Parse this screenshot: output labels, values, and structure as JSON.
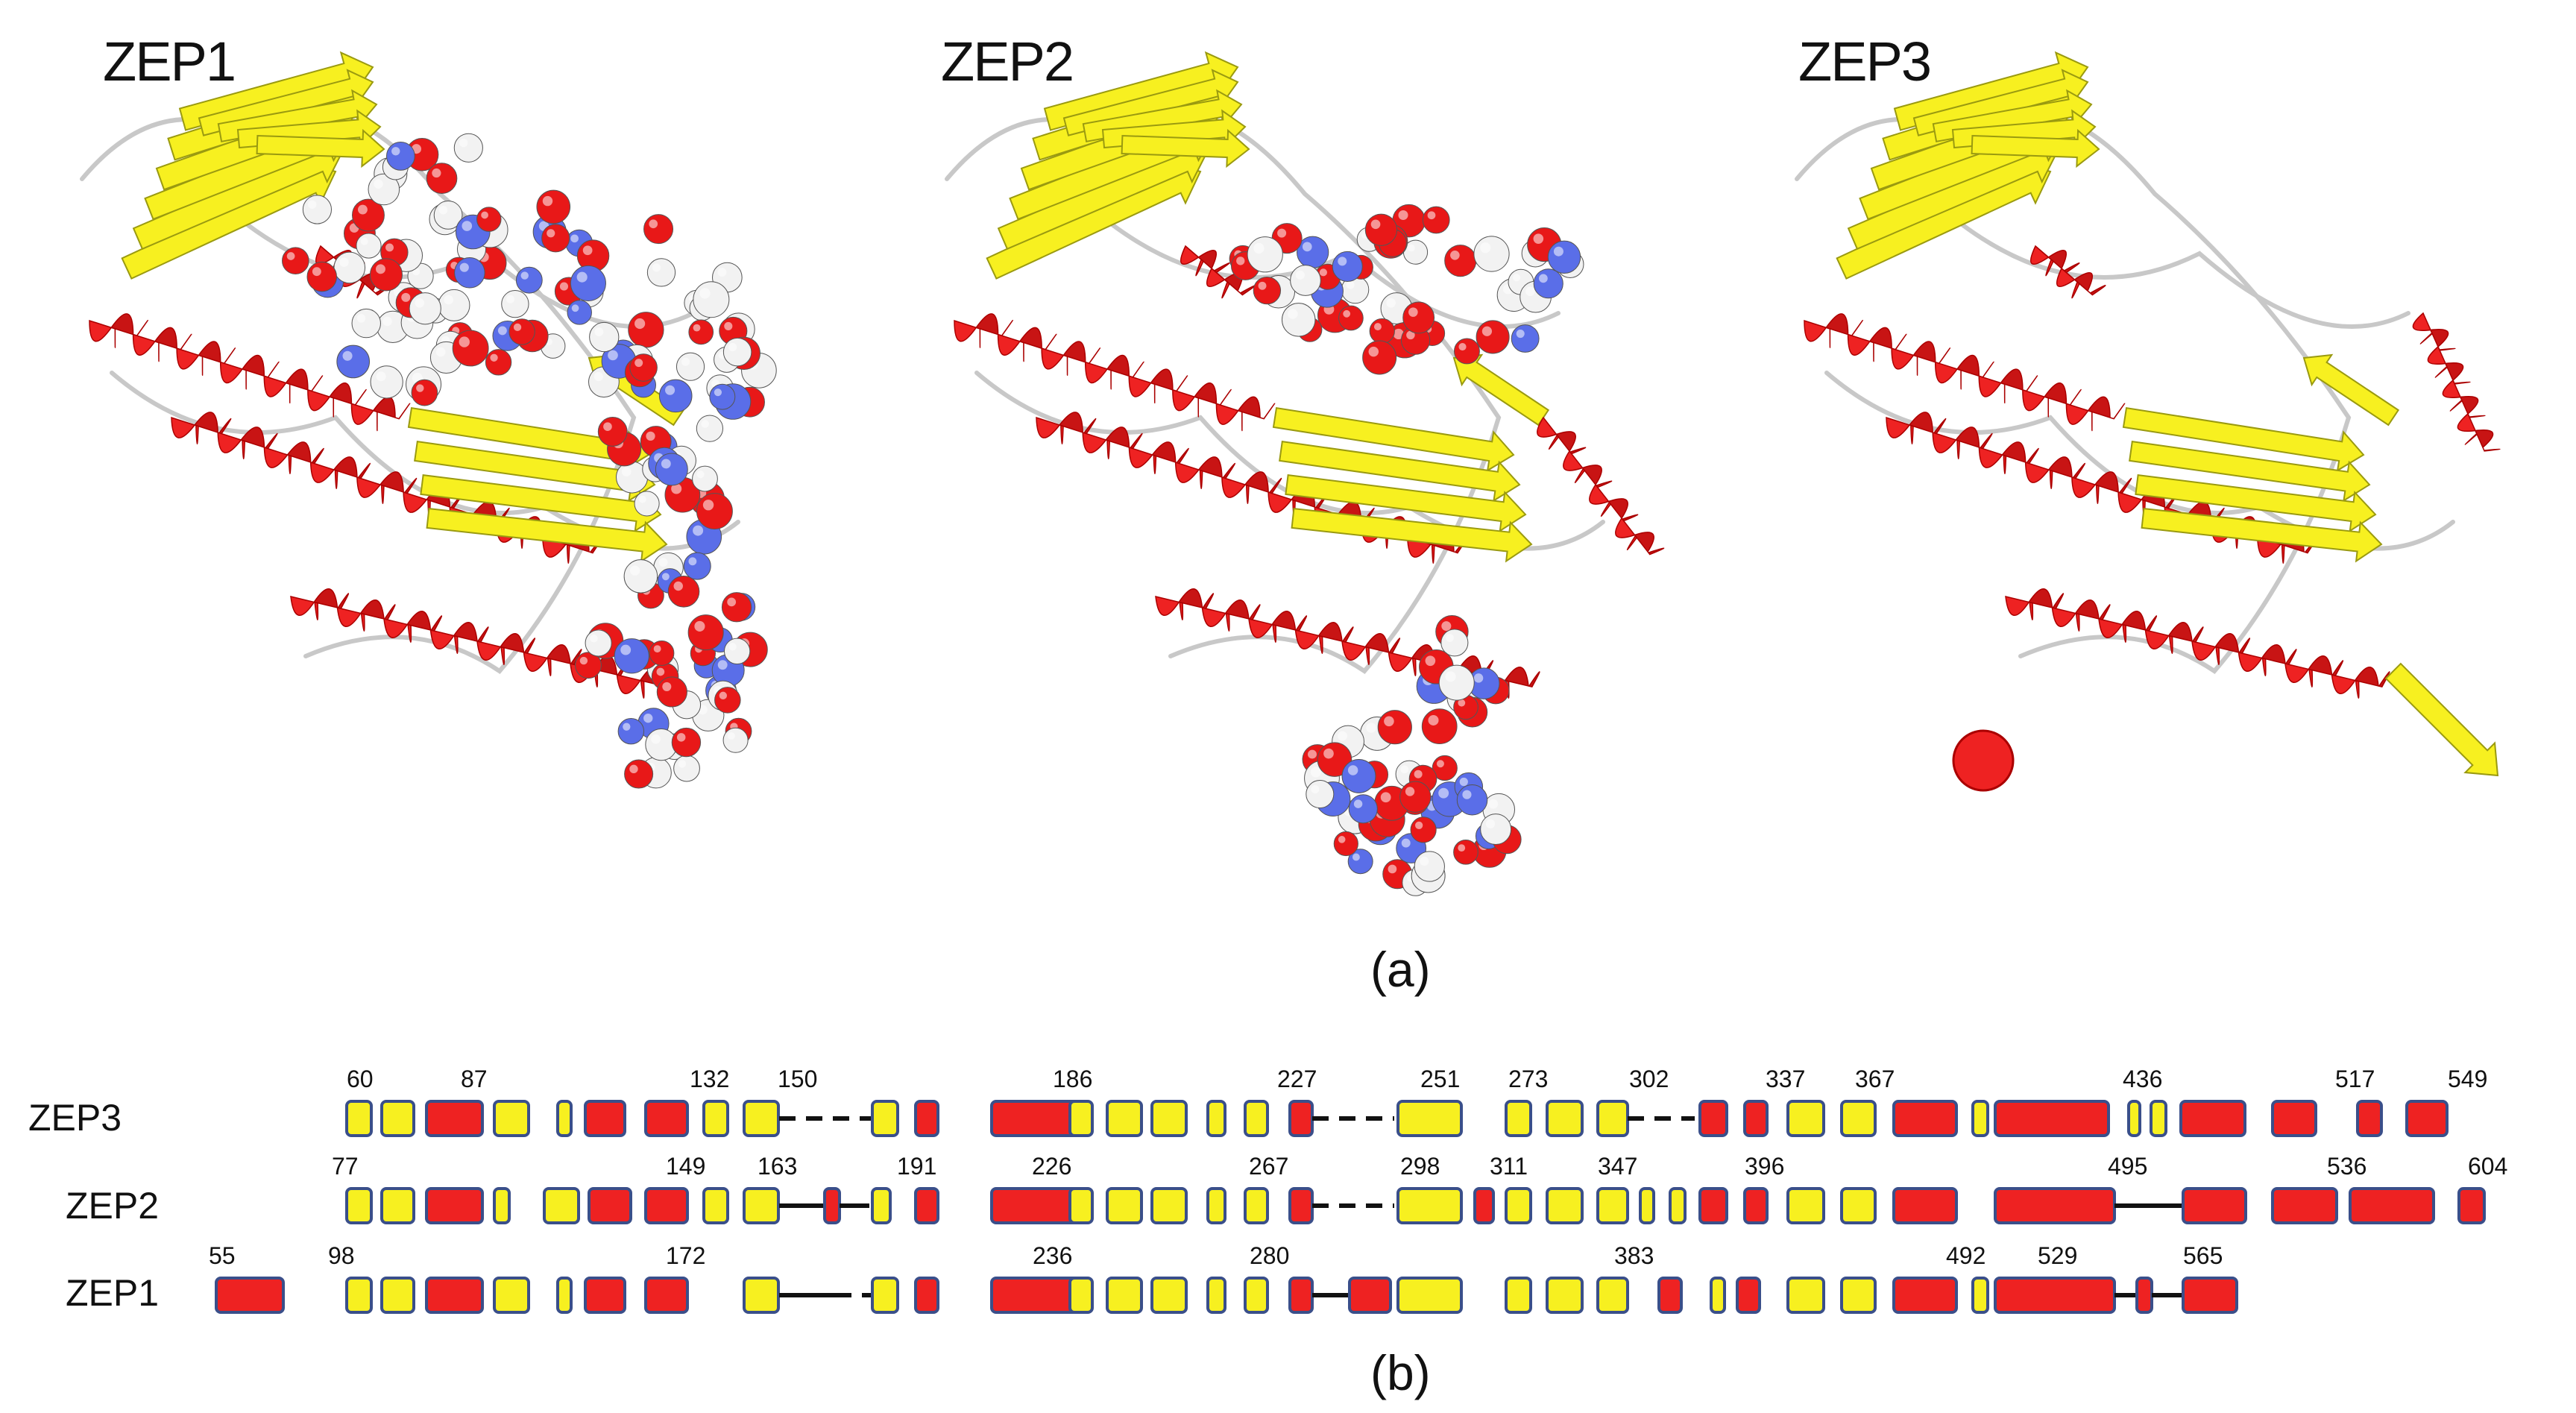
{
  "panel_a": {
    "label": "(a)",
    "structures": [
      {
        "name": "ZEP1",
        "has_ligands": true
      },
      {
        "name": "ZEP2",
        "has_ligands": true
      },
      {
        "name": "ZEP3",
        "has_ligands": false
      }
    ]
  },
  "panel_b": {
    "label": "(b)",
    "rows": [
      {
        "name": "ZEP3",
        "ticks": [
          "60",
          "87",
          "132",
          "150",
          "186",
          "227",
          "251",
          "273",
          "302",
          "337",
          "367",
          "436",
          "517",
          "549"
        ]
      },
      {
        "name": "ZEP2",
        "ticks": [
          "77",
          "149",
          "163",
          "191",
          "226",
          "267",
          "298",
          "311",
          "347",
          "396",
          "495",
          "536",
          "604"
        ]
      },
      {
        "name": "ZEP1",
        "ticks": [
          "55",
          "98",
          "172",
          "236",
          "280",
          "383",
          "492",
          "529",
          "565"
        ]
      }
    ]
  },
  "colors": {
    "helix": "#ee2222",
    "strand": "#f7f020",
    "coil": "#c8c8c8",
    "outline": "#3a4f8a",
    "atom_oxygen": "#e81818",
    "atom_nitrogen": "#5a6ee8",
    "atom_carbon": "#f2f2f2"
  },
  "legend_semantics": {
    "helix": "alpha-helix",
    "strand": "beta-strand",
    "solid_line": "",
    "dashed_line": ""
  }
}
